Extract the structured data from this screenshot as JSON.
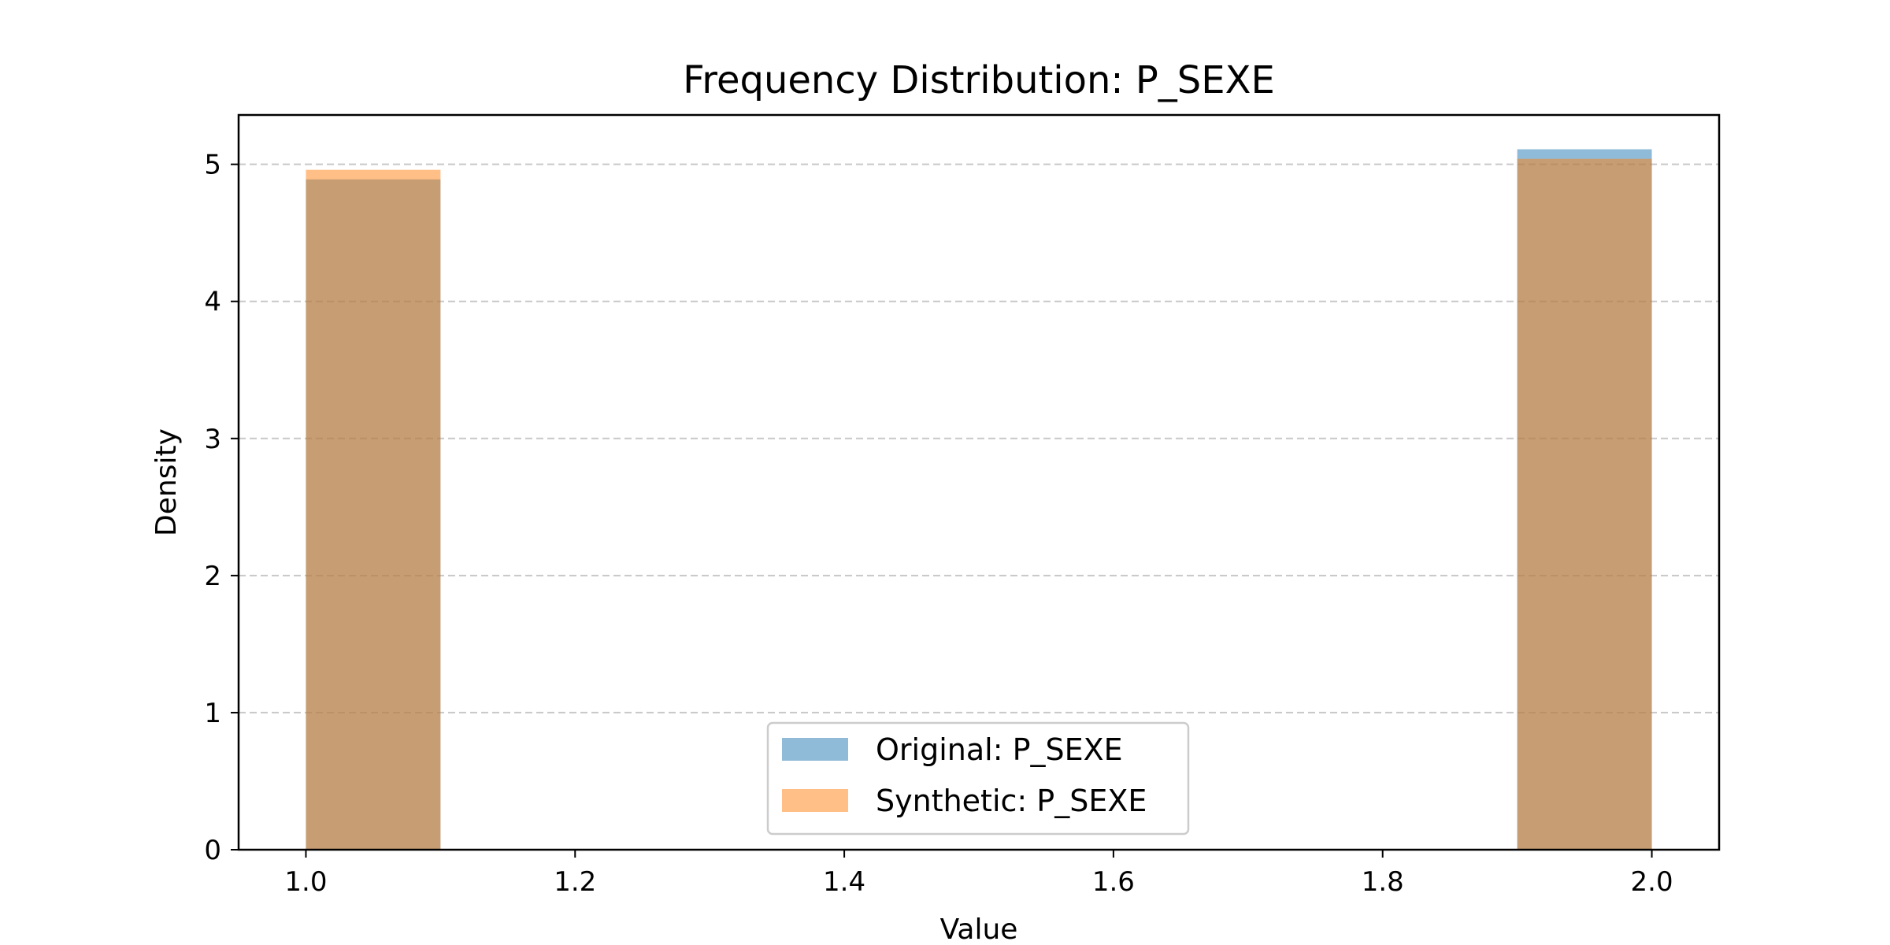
{
  "chart_data": {
    "type": "histogram",
    "title": "Frequency Distribution: P_SEXE",
    "xlabel": "Value",
    "ylabel": "Density",
    "xlim": [
      0.95,
      2.05
    ],
    "ylim": [
      0,
      5.36
    ],
    "xticks": [
      1.0,
      1.2,
      1.4,
      1.6,
      1.8,
      2.0
    ],
    "xtick_labels": [
      "1.0",
      "1.2",
      "1.4",
      "1.6",
      "1.8",
      "2.0"
    ],
    "yticks": [
      0,
      1,
      2,
      3,
      4,
      5
    ],
    "ytick_labels": [
      "0",
      "1",
      "2",
      "3",
      "4",
      "5"
    ],
    "grid": "y-dashed",
    "legend_position": "lower center",
    "series": [
      {
        "name": "Original: P_SEXE",
        "color": "#1f77b4",
        "alpha": 0.5,
        "bins": [
          {
            "x0": 1.0,
            "x1": 1.1,
            "value": 4.89
          },
          {
            "x0": 1.9,
            "x1": 2.0,
            "value": 5.11
          }
        ]
      },
      {
        "name": "Synthetic: P_SEXE",
        "color": "#ff7f0e",
        "alpha": 0.5,
        "bins": [
          {
            "x0": 1.0,
            "x1": 1.1,
            "value": 4.96
          },
          {
            "x0": 1.9,
            "x1": 2.0,
            "value": 5.04
          }
        ]
      }
    ]
  }
}
